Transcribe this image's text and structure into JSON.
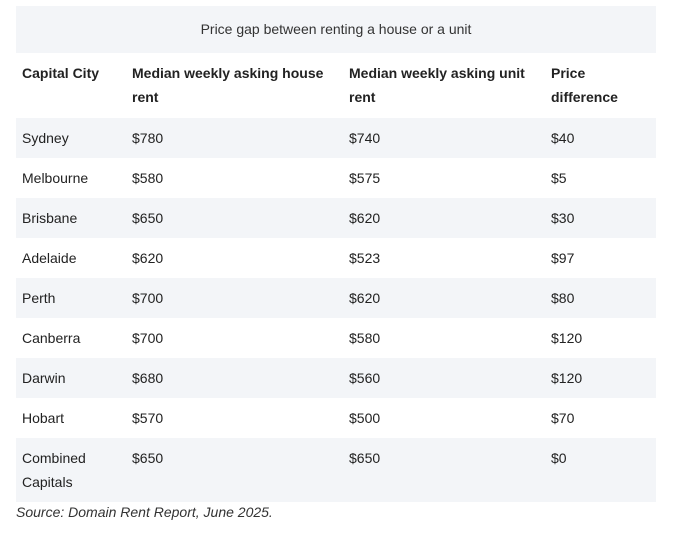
{
  "table": {
    "caption": "Price gap between renting a house or a unit",
    "header": [
      "Capital City",
      "Median weekly asking house rent",
      "Median weekly asking unit rent",
      "Price difference"
    ],
    "rows": [
      [
        "Sydney",
        "$780",
        "$740",
        "$40"
      ],
      [
        "Melbourne",
        "$580",
        "$575",
        "$5"
      ],
      [
        "Brisbane",
        "$650",
        "$620",
        "$30"
      ],
      [
        "Adelaide",
        "$620",
        "$523",
        "$97"
      ],
      [
        "Perth",
        "$700",
        "$620",
        "$80"
      ],
      [
        "Canberra",
        "$700",
        "$580",
        "$120"
      ],
      [
        "Darwin",
        "$680",
        "$560",
        "$120"
      ],
      [
        "Hobart",
        "$570",
        "$500",
        "$70"
      ],
      [
        "Combined Capitals",
        "$650",
        "$650",
        "$0"
      ]
    ]
  },
  "source": "Source: Domain Rent Report, June 2025."
}
